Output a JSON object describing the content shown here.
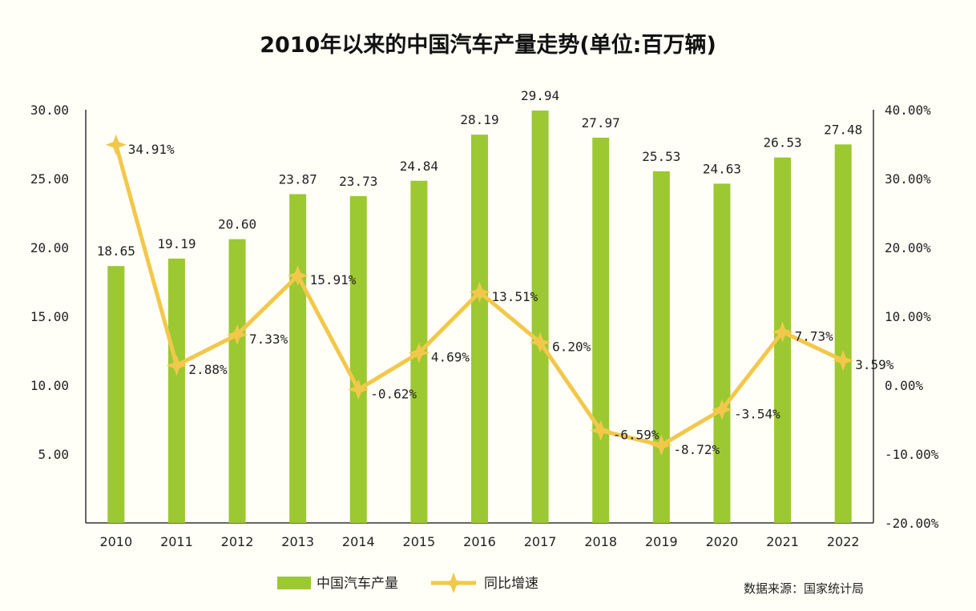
{
  "chart_data": {
    "type": "bar",
    "title": "2010年以来的中国汽车产量走势(单位:百万辆)",
    "categories": [
      "2010",
      "2011",
      "2012",
      "2013",
      "2014",
      "2015",
      "2016",
      "2017",
      "2018",
      "2019",
      "2020",
      "2021",
      "2022"
    ],
    "series": [
      {
        "name": "中国汽车产量",
        "type": "bar",
        "axis": "left",
        "color": "#9cc832",
        "values": [
          18.65,
          19.19,
          20.6,
          23.87,
          23.73,
          24.84,
          28.19,
          29.94,
          27.97,
          25.53,
          24.63,
          26.53,
          27.48
        ],
        "labels": [
          "18.65",
          "19.19",
          "20.60",
          "23.87",
          "23.73",
          "24.84",
          "28.19",
          "29.94",
          "27.97",
          "25.53",
          "24.63",
          "26.53",
          "27.48"
        ]
      },
      {
        "name": "同比增速",
        "type": "line",
        "axis": "right",
        "color": "#f2c84b",
        "marker": "star",
        "values": [
          34.91,
          2.88,
          7.33,
          15.91,
          -0.62,
          4.69,
          13.51,
          6.2,
          -6.59,
          -8.72,
          -3.54,
          7.73,
          3.59
        ],
        "labels": [
          "34.91%",
          "2.88%",
          "7.33%",
          "15.91%",
          "-0.62%",
          "4.69%",
          "13.51%",
          "6.20%",
          "-6.59%",
          "-8.72%",
          "-3.54%",
          "7.73%",
          "3.59%"
        ]
      }
    ],
    "y_left": {
      "ylim": [
        0,
        30
      ],
      "ticks": [
        5,
        10,
        15,
        20,
        25,
        30
      ],
      "tick_labels": [
        "5.00",
        "10.00",
        "15.00",
        "20.00",
        "25.00",
        "30.00"
      ]
    },
    "y_right": {
      "ylim": [
        -20,
        40
      ],
      "ticks": [
        -20,
        -10,
        0,
        10,
        20,
        30,
        40
      ],
      "tick_labels": [
        "-20.00%",
        "-10.00%",
        "0.00%",
        "10.00%",
        "20.00%",
        "30.00%",
        "40.00%"
      ]
    },
    "grid": false,
    "legend_position": "bottom-center"
  },
  "source": "数据来源：国家统计局"
}
